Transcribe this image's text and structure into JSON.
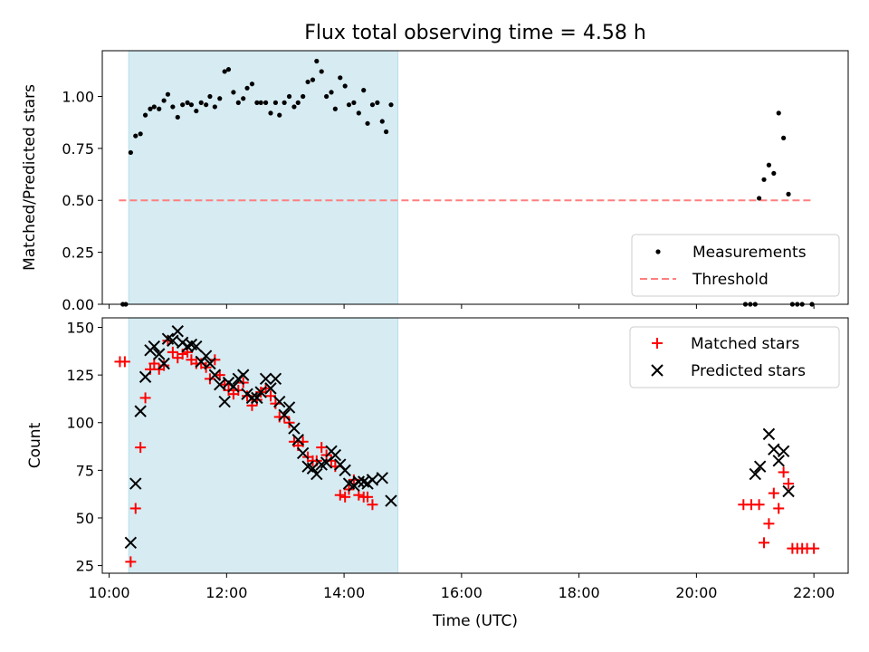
{
  "title": "Flux total observing time = 4.58 h",
  "colors": {
    "shade": "#add8e6",
    "threshold": "#ff7f7f",
    "matched": "#ff0000",
    "predicted": "#000000",
    "measurement": "#000000"
  },
  "chart_data": [
    {
      "type": "scatter",
      "ylabel": "Matched/Predicted stars",
      "ylim": [
        0,
        1.22
      ],
      "xlim": [
        "09:53",
        "22:35"
      ],
      "yticks": [
        "0.00",
        "0.25",
        "0.50",
        "0.75",
        "1.00"
      ],
      "shaded_interval": [
        "10:20",
        "14:55"
      ],
      "threshold": {
        "value": 0.5,
        "x_range": [
          "10:10",
          "22:00"
        ]
      },
      "legend": {
        "position": "lower-right",
        "entries": [
          "Measurements",
          "Threshold"
        ]
      },
      "series": [
        {
          "name": "Measurements",
          "points": [
            [
              "10:14",
              0.0
            ],
            [
              "10:17",
              0.0
            ],
            [
              "10:22",
              0.73
            ],
            [
              "10:27",
              0.81
            ],
            [
              "10:32",
              0.82
            ],
            [
              "10:37",
              0.91
            ],
            [
              "10:42",
              0.94
            ],
            [
              "10:46",
              0.95
            ],
            [
              "10:51",
              0.94
            ],
            [
              "10:56",
              0.98
            ],
            [
              "11:00",
              1.01
            ],
            [
              "11:05",
              0.95
            ],
            [
              "11:10",
              0.9
            ],
            [
              "11:15",
              0.96
            ],
            [
              "11:20",
              0.97
            ],
            [
              "11:24",
              0.96
            ],
            [
              "11:29",
              0.93
            ],
            [
              "11:34",
              0.97
            ],
            [
              "11:39",
              0.96
            ],
            [
              "11:43",
              1.0
            ],
            [
              "11:48",
              0.95
            ],
            [
              "11:53",
              0.99
            ],
            [
              "11:58",
              1.12
            ],
            [
              "12:02",
              1.13
            ],
            [
              "12:07",
              1.02
            ],
            [
              "12:12",
              0.97
            ],
            [
              "12:17",
              0.99
            ],
            [
              "12:21",
              1.04
            ],
            [
              "12:26",
              1.06
            ],
            [
              "12:31",
              0.97
            ],
            [
              "12:35",
              0.97
            ],
            [
              "12:40",
              0.97
            ],
            [
              "12:45",
              0.92
            ],
            [
              "12:50",
              0.97
            ],
            [
              "12:54",
              0.91
            ],
            [
              "12:59",
              0.97
            ],
            [
              "13:04",
              1.0
            ],
            [
              "13:09",
              0.95
            ],
            [
              "13:13",
              0.97
            ],
            [
              "13:18",
              1.0
            ],
            [
              "13:23",
              1.07
            ],
            [
              "13:28",
              1.08
            ],
            [
              "13:32",
              1.17
            ],
            [
              "13:37",
              1.12
            ],
            [
              "13:42",
              1.0
            ],
            [
              "13:47",
              1.02
            ],
            [
              "13:51",
              0.94
            ],
            [
              "13:56",
              1.09
            ],
            [
              "14:01",
              1.05
            ],
            [
              "14:05",
              0.96
            ],
            [
              "14:10",
              0.97
            ],
            [
              "14:15",
              0.92
            ],
            [
              "14:20",
              1.03
            ],
            [
              "14:24",
              0.87
            ],
            [
              "14:29",
              0.96
            ],
            [
              "14:34",
              0.97
            ],
            [
              "14:39",
              0.88
            ],
            [
              "14:43",
              0.83
            ],
            [
              "14:48",
              0.96
            ],
            [
              "20:50",
              0.0
            ],
            [
              "20:55",
              0.0
            ],
            [
              "21:00",
              0.0
            ],
            [
              "21:04",
              0.51
            ],
            [
              "21:09",
              0.6
            ],
            [
              "21:14",
              0.67
            ],
            [
              "21:19",
              0.63
            ],
            [
              "21:24",
              0.92
            ],
            [
              "21:29",
              0.8
            ],
            [
              "21:34",
              0.53
            ],
            [
              "21:38",
              0.0
            ],
            [
              "21:43",
              0.0
            ],
            [
              "21:48",
              0.0
            ],
            [
              "21:58",
              0.0
            ]
          ]
        }
      ]
    },
    {
      "type": "scatter",
      "ylabel": "Count",
      "xlabel": "Time (UTC)",
      "ylim": [
        21,
        155
      ],
      "xlim": [
        "09:53",
        "22:35"
      ],
      "yticks": [
        "25",
        "50",
        "75",
        "100",
        "125",
        "150"
      ],
      "xticks": [
        "10:00",
        "12:00",
        "14:00",
        "16:00",
        "18:00",
        "20:00",
        "22:00"
      ],
      "shaded_interval": [
        "10:20",
        "14:55"
      ],
      "legend": {
        "position": "upper-right",
        "entries": [
          "Matched stars",
          "Predicted stars"
        ]
      },
      "series": [
        {
          "name": "Matched stars",
          "points": [
            [
              "10:11",
              132
            ],
            [
              "10:16",
              132
            ],
            [
              "10:22",
              27
            ],
            [
              "10:27",
              55
            ],
            [
              "10:32",
              87
            ],
            [
              "10:37",
              113
            ],
            [
              "10:42",
              128
            ],
            [
              "10:46",
              131
            ],
            [
              "10:51",
              128
            ],
            [
              "10:56",
              130
            ],
            [
              "11:00",
              143
            ],
            [
              "11:05",
              137
            ],
            [
              "11:10",
              134
            ],
            [
              "11:15",
              136
            ],
            [
              "11:20",
              137
            ],
            [
              "11:24",
              133
            ],
            [
              "11:29",
              131
            ],
            [
              "11:34",
              131
            ],
            [
              "11:39",
              129
            ],
            [
              "11:43",
              123
            ],
            [
              "11:48",
              133
            ],
            [
              "11:53",
              125
            ],
            [
              "11:58",
              120
            ],
            [
              "12:02",
              117
            ],
            [
              "12:07",
              115
            ],
            [
              "12:12",
              117
            ],
            [
              "12:17",
              121
            ],
            [
              "12:21",
              114
            ],
            [
              "12:26",
              109
            ],
            [
              "12:31",
              112
            ],
            [
              "12:35",
              116
            ],
            [
              "12:40",
              118
            ],
            [
              "12:45",
              114
            ],
            [
              "12:50",
              110
            ],
            [
              "12:54",
              103
            ],
            [
              "12:59",
              103
            ],
            [
              "13:04",
              100
            ],
            [
              "13:09",
              90
            ],
            [
              "13:13",
              88
            ],
            [
              "13:18",
              90
            ],
            [
              "13:23",
              82
            ],
            [
              "13:28",
              80
            ],
            [
              "13:32",
              80
            ],
            [
              "13:37",
              87
            ],
            [
              "13:42",
              83
            ],
            [
              "13:47",
              80
            ],
            [
              "13:51",
              77
            ],
            [
              "13:56",
              62
            ],
            [
              "14:01",
              61
            ],
            [
              "14:05",
              65
            ],
            [
              "14:10",
              70
            ],
            [
              "14:15",
              62
            ],
            [
              "14:20",
              61
            ],
            [
              "14:24",
              61
            ],
            [
              "14:29",
              57
            ],
            [
              "20:48",
              57
            ],
            [
              "20:56",
              57
            ],
            [
              "21:04",
              57
            ],
            [
              "21:09",
              37
            ],
            [
              "21:14",
              47
            ],
            [
              "21:19",
              63
            ],
            [
              "21:24",
              55
            ],
            [
              "21:29",
              74
            ],
            [
              "21:34",
              68
            ],
            [
              "21:38",
              34
            ],
            [
              "21:43",
              34
            ],
            [
              "21:48",
              34
            ],
            [
              "21:53",
              34
            ],
            [
              "22:00",
              34
            ]
          ]
        },
        {
          "name": "Predicted stars",
          "points": [
            [
              "10:22",
              37
            ],
            [
              "10:27",
              68
            ],
            [
              "10:32",
              106
            ],
            [
              "10:37",
              124
            ],
            [
              "10:42",
              138
            ],
            [
              "10:46",
              140
            ],
            [
              "10:51",
              136
            ],
            [
              "10:56",
              131
            ],
            [
              "11:00",
              144
            ],
            [
              "11:05",
              143
            ],
            [
              "11:10",
              148
            ],
            [
              "11:15",
              142
            ],
            [
              "11:20",
              140
            ],
            [
              "11:24",
              141
            ],
            [
              "11:29",
              140
            ],
            [
              "11:34",
              132
            ],
            [
              "11:39",
              135
            ],
            [
              "11:43",
              131
            ],
            [
              "11:48",
              125
            ],
            [
              "11:53",
              120
            ],
            [
              "11:58",
              111
            ],
            [
              "12:02",
              121
            ],
            [
              "12:07",
              119
            ],
            [
              "12:12",
              123
            ],
            [
              "12:17",
              125
            ],
            [
              "12:21",
              115
            ],
            [
              "12:26",
              113
            ],
            [
              "12:31",
              113
            ],
            [
              "12:35",
              116
            ],
            [
              "12:40",
              123
            ],
            [
              "12:45",
              118
            ],
            [
              "12:50",
              123
            ],
            [
              "12:54",
              111
            ],
            [
              "12:59",
              104
            ],
            [
              "13:04",
              108
            ],
            [
              "13:09",
              97
            ],
            [
              "13:13",
              91
            ],
            [
              "13:18",
              84
            ],
            [
              "13:23",
              77
            ],
            [
              "13:28",
              76
            ],
            [
              "13:32",
              73
            ],
            [
              "13:37",
              78
            ],
            [
              "13:42",
              79
            ],
            [
              "13:47",
              85
            ],
            [
              "13:51",
              83
            ],
            [
              "13:56",
              78
            ],
            [
              "14:01",
              75
            ],
            [
              "14:05",
              68
            ],
            [
              "14:10",
              67
            ],
            [
              "14:15",
              69
            ],
            [
              "14:20",
              69
            ],
            [
              "14:24",
              68
            ],
            [
              "14:29",
              70
            ],
            [
              "14:39",
              71
            ],
            [
              "14:48",
              59
            ],
            [
              "21:00",
              73
            ],
            [
              "21:05",
              77
            ],
            [
              "21:14",
              94
            ],
            [
              "21:19",
              86
            ],
            [
              "21:24",
              80
            ],
            [
              "21:29",
              85
            ],
            [
              "21:34",
              64
            ]
          ]
        }
      ]
    }
  ]
}
